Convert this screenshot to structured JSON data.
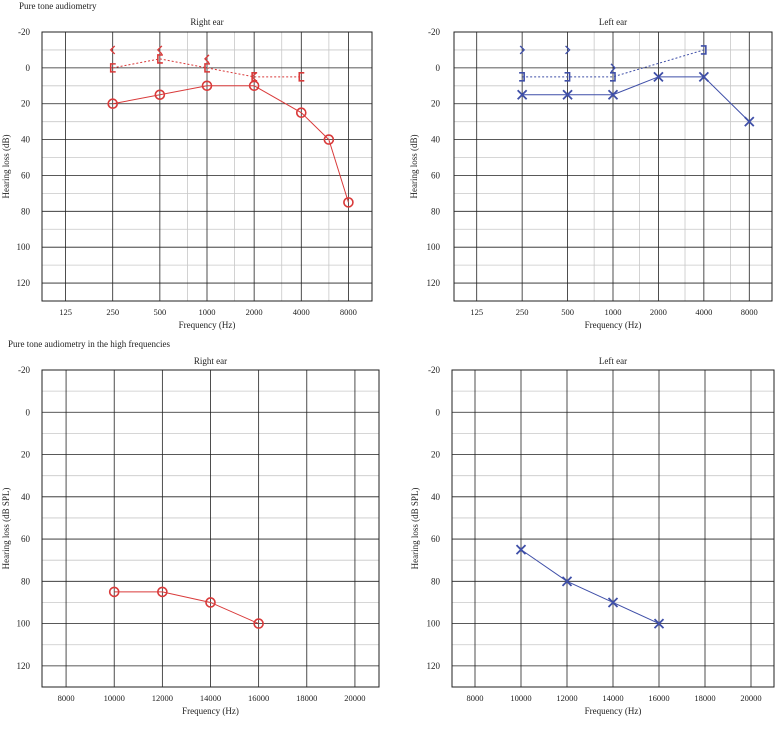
{
  "sections": {
    "standard_title": "Pure tone audiometry",
    "high_title": "Pure tone audiometry in the high frequencies"
  },
  "colors": {
    "right": "#d93a3a",
    "left": "#3f4fa8",
    "grid_major": "#222222",
    "grid_minor": "#c8c8c8"
  },
  "chart_data": [
    {
      "id": "std-right",
      "type": "line",
      "title": "Right ear",
      "xlabel": "Frequency (Hz)",
      "ylabel": "Hearing loss (dB)",
      "x_scale": "log",
      "x_ticks": [
        125,
        250,
        500,
        1000,
        2000,
        4000,
        8000
      ],
      "x_tick_labels": [
        "125",
        "250",
        "500",
        "1000",
        "2000",
        "4000",
        "8000"
      ],
      "x_minor": [
        750,
        1500,
        3000,
        6000
      ],
      "ylim": [
        -20,
        130
      ],
      "y_ticks": [
        -20,
        0,
        20,
        40,
        60,
        80,
        100,
        120
      ],
      "y_tick_labels": [
        "-20",
        "0",
        "20",
        "40",
        "60",
        "80",
        "100",
        "120"
      ],
      "series": [
        {
          "kind": "air",
          "marker": "circle",
          "line": "solid",
          "x": [
            250,
            500,
            1000,
            2000,
            4000,
            6000,
            8000
          ],
          "y": [
            20,
            15,
            10,
            10,
            25,
            40,
            75
          ]
        },
        {
          "kind": "bone-masked",
          "marker": "bracket-left",
          "line": "dashed",
          "x": [
            250,
            500,
            1000,
            2000,
            4000
          ],
          "y": [
            0,
            -5,
            0,
            5,
            5
          ]
        },
        {
          "kind": "bone",
          "marker": "angle-left",
          "line": "none",
          "x": [
            250,
            500,
            1000,
            2000
          ],
          "y": [
            -10,
            -10,
            -5,
            5
          ]
        }
      ]
    },
    {
      "id": "std-left",
      "type": "line",
      "title": "Left ear",
      "xlabel": "Frequency (Hz)",
      "ylabel": "Hearing loss (dB)",
      "x_scale": "log",
      "x_ticks": [
        125,
        250,
        500,
        1000,
        2000,
        4000,
        8000
      ],
      "x_tick_labels": [
        "125",
        "250",
        "500",
        "1000",
        "2000",
        "4000",
        "8000"
      ],
      "x_minor": [
        750,
        1500,
        3000,
        6000
      ],
      "ylim": [
        -20,
        130
      ],
      "y_ticks": [
        -20,
        0,
        20,
        40,
        60,
        80,
        100,
        120
      ],
      "y_tick_labels": [
        "-20",
        "0",
        "20",
        "40",
        "60",
        "80",
        "100",
        "120"
      ],
      "series": [
        {
          "kind": "air",
          "marker": "x",
          "line": "solid",
          "x": [
            250,
            500,
            1000,
            2000,
            4000,
            8000
          ],
          "y": [
            15,
            15,
            15,
            5,
            5,
            30
          ]
        },
        {
          "kind": "bone-masked",
          "marker": "bracket-right",
          "line": "dashed",
          "x": [
            250,
            500,
            1000,
            4000
          ],
          "y": [
            5,
            5,
            5,
            -10
          ]
        },
        {
          "kind": "bone",
          "marker": "angle-right",
          "line": "none",
          "x": [
            250,
            500,
            1000
          ],
          "y": [
            -10,
            -10,
            0
          ]
        }
      ]
    },
    {
      "id": "hf-right",
      "type": "line",
      "title": "Right ear",
      "xlabel": "Frequency (Hz)",
      "ylabel": "Hearing loss (dB SPL)",
      "x_scale": "linear",
      "x_ticks": [
        8000,
        10000,
        12000,
        14000,
        16000,
        18000,
        20000
      ],
      "x_tick_labels": [
        "8000",
        "10000",
        "12000",
        "14000",
        "16000",
        "18000",
        "20000"
      ],
      "x_minor": [],
      "xlim": [
        7000,
        21000
      ],
      "ylim": [
        -20,
        130
      ],
      "y_ticks": [
        -20,
        0,
        20,
        40,
        60,
        80,
        100,
        120
      ],
      "y_tick_labels": [
        "-20",
        "0",
        "20",
        "40",
        "60",
        "80",
        "100",
        "120"
      ],
      "series": [
        {
          "kind": "air",
          "marker": "circle",
          "line": "solid",
          "x": [
            10000,
            12000,
            14000,
            16000
          ],
          "y": [
            85,
            85,
            90,
            100
          ]
        }
      ]
    },
    {
      "id": "hf-left",
      "type": "line",
      "title": "Left ear",
      "xlabel": "Frequency (Hz)",
      "ylabel": "Hearing loss (dB SPL)",
      "x_scale": "linear",
      "x_ticks": [
        8000,
        10000,
        12000,
        14000,
        16000,
        18000,
        20000
      ],
      "x_tick_labels": [
        "8000",
        "10000",
        "12000",
        "14000",
        "16000",
        "18000",
        "20000"
      ],
      "x_minor": [],
      "xlim": [
        7000,
        21000
      ],
      "ylim": [
        -20,
        130
      ],
      "y_ticks": [
        -20,
        0,
        20,
        40,
        60,
        80,
        100,
        120
      ],
      "y_tick_labels": [
        "-20",
        "0",
        "20",
        "40",
        "60",
        "80",
        "100",
        "120"
      ],
      "series": [
        {
          "kind": "air",
          "marker": "x",
          "line": "solid",
          "x": [
            10000,
            12000,
            14000,
            16000
          ],
          "y": [
            65,
            80,
            90,
            100
          ]
        }
      ]
    }
  ]
}
